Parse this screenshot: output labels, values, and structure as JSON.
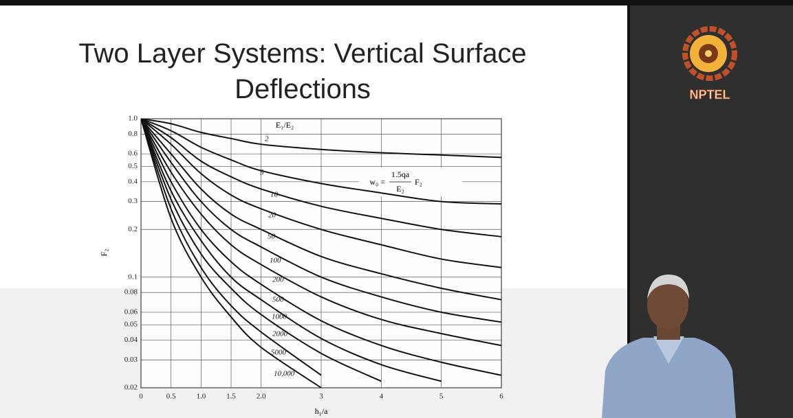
{
  "logo": "NPTEL",
  "chart_data": {
    "type": "line",
    "title": "Two Layer Systems: Vertical Surface Deflections",
    "x_label": "h₁/a",
    "y_label": "F₂",
    "legend_title": "E₁/E₂",
    "formula": {
      "lhs": "w₀ =",
      "numerator": "1.5qa",
      "denominator": "E₂",
      "rhs": "F₂"
    },
    "x": [
      0,
      0.5,
      1,
      1.5,
      2,
      3,
      4,
      5,
      6
    ],
    "xlim": [
      0,
      6
    ],
    "xticks": [
      0,
      0.5,
      {
        "value": 1,
        "label": "1.0"
      },
      1.5,
      {
        "value": 2,
        "label": "2.0"
      },
      3,
      4,
      5,
      6
    ],
    "ylim": [
      0.02,
      1
    ],
    "yticks": [
      0.02,
      0.03,
      0.04,
      0.05,
      0.06,
      0.08,
      0.1,
      0.2,
      0.3,
      0.4,
      0.5,
      0.6,
      0.8,
      {
        "value": 1,
        "label": "1.0"
      }
    ],
    "log_y": true,
    "grid": true,
    "series": [
      {
        "name": "2",
        "color": "#111111",
        "values": [
          1,
          0.93,
          0.82,
          0.75,
          0.69,
          0.64,
          0.61,
          0.59,
          0.57
        ]
      },
      {
        "name": "5",
        "color": "#111111",
        "values": [
          1,
          0.84,
          0.66,
          0.55,
          0.47,
          0.39,
          0.34,
          0.3,
          0.29
        ]
      },
      {
        "name": "10",
        "color": "#111111",
        "values": [
          1,
          0.76,
          0.54,
          0.43,
          0.36,
          0.28,
          0.235,
          0.2,
          0.18
        ]
      },
      {
        "name": "20",
        "color": "#111111",
        "values": [
          1,
          0.69,
          0.45,
          0.33,
          0.27,
          0.2,
          0.16,
          0.13,
          0.115
        ]
      },
      {
        "name": "50",
        "color": "#111111",
        "values": [
          1,
          0.6,
          0.36,
          0.25,
          0.2,
          0.135,
          0.105,
          0.085,
          0.072
        ]
      },
      {
        "name": "100",
        "color": "#111111",
        "values": [
          1,
          0.53,
          0.3,
          0.2,
          0.155,
          0.1,
          0.075,
          0.06,
          0.052
        ]
      },
      {
        "name": "200",
        "color": "#111111",
        "values": [
          1,
          0.46,
          0.25,
          0.16,
          0.12,
          0.075,
          0.054,
          0.044,
          0.037
        ]
      },
      {
        "name": "500",
        "color": "#111111",
        "values": [
          1,
          0.4,
          0.2,
          0.125,
          0.09,
          0.053,
          0.037,
          0.029,
          0.024
        ]
      },
      {
        "name": "1000",
        "color": "#111111",
        "values": [
          1,
          0.35,
          0.17,
          0.1,
          0.072,
          0.041,
          0.028,
          0.022,
          null
        ]
      },
      {
        "name": "2000",
        "color": "#111111",
        "values": [
          1,
          0.31,
          0.14,
          0.085,
          0.058,
          0.033,
          0.022,
          null,
          null
        ]
      },
      {
        "name": "5000",
        "color": "#111111",
        "values": [
          1,
          0.27,
          0.115,
          0.066,
          0.045,
          0.024,
          null,
          null,
          null
        ]
      },
      {
        "name": "10,000",
        "color": "#111111",
        "values": [
          1,
          0.235,
          0.1,
          0.056,
          0.036,
          0.02,
          null,
          null,
          null
        ]
      }
    ]
  }
}
